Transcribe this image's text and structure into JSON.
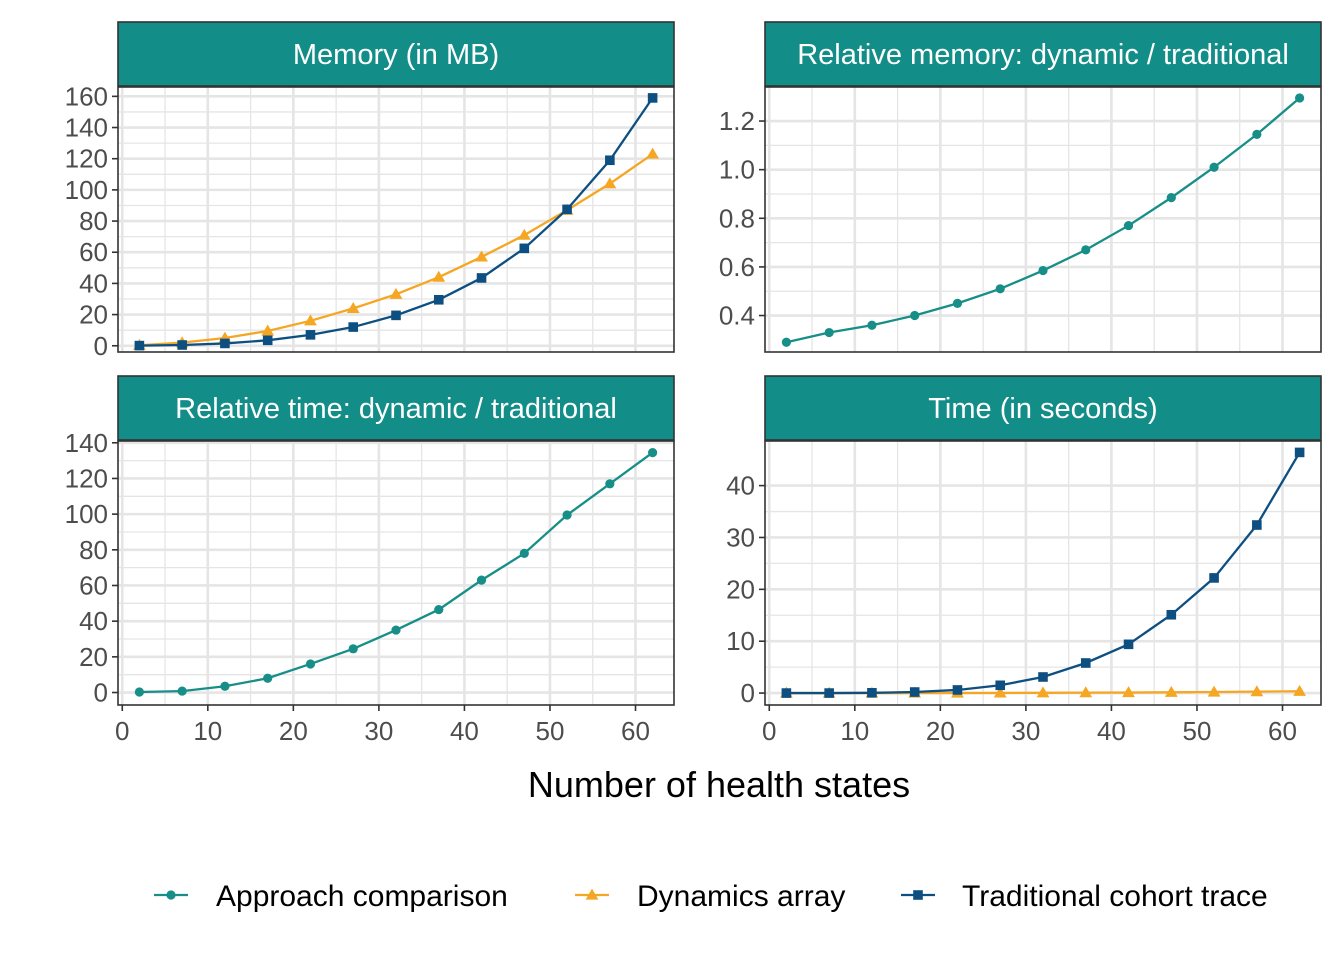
{
  "chart_data": {
    "type": "line",
    "xlabel": "Number of health states",
    "colors": {
      "strip_fill": "#138D88",
      "approach": "#178E88",
      "dynamics": "#F5A623",
      "traditional": "#0E4F82",
      "grid": "#E5E5E5",
      "border": "#333333"
    },
    "legend": {
      "position": "bottom",
      "entries": [
        {
          "name": "Approach comparison",
          "color": "#178E88",
          "marker": "circle"
        },
        {
          "name": "Dynamics array",
          "color": "#F5A623",
          "marker": "triangle"
        },
        {
          "name": "Traditional cohort trace",
          "color": "#0E4F82",
          "marker": "square"
        }
      ]
    },
    "x": [
      2,
      7,
      12,
      17,
      22,
      27,
      32,
      37,
      42,
      47,
      52,
      57,
      62
    ],
    "x_ticks": [
      0,
      10,
      20,
      30,
      40,
      50,
      60
    ],
    "panels": [
      {
        "title": "Memory (in MB)",
        "xlim": [
          -0.5,
          64.5
        ],
        "ylim": [
          -4,
          166
        ],
        "y_ticks": [
          0,
          20,
          40,
          60,
          80,
          100,
          120,
          140,
          160
        ],
        "series": [
          {
            "name": "Dynamics array",
            "values": [
              0.3,
              2,
              5,
              9.5,
              16,
              24,
              33,
              44,
              57,
              71,
              87,
              104,
              123
            ]
          },
          {
            "name": "Traditional cohort trace",
            "values": [
              0.1,
              0.5,
              1.5,
              3.5,
              7,
              12,
              19.5,
              29.5,
              43.5,
              62.5,
              87.5,
              119,
              159
            ]
          }
        ]
      },
      {
        "title": "Relative memory: dynamic / traditional",
        "xlim": [
          -0.5,
          64.5
        ],
        "ylim": [
          0.25,
          1.34
        ],
        "y_ticks": [
          0.4,
          0.6,
          0.8,
          1.0,
          1.2
        ],
        "y_tick_labels": [
          "0.4",
          "0.6",
          "0.8",
          "1.0",
          "1.2"
        ],
        "series": [
          {
            "name": "Approach comparison",
            "values": [
              0.29,
              0.33,
              0.36,
              0.4,
              0.45,
              0.51,
              0.585,
              0.67,
              0.77,
              0.885,
              1.01,
              1.145,
              1.295
            ]
          }
        ]
      },
      {
        "title": "Relative time: dynamic / traditional",
        "xlim": [
          -0.5,
          64.5
        ],
        "ylim": [
          -7,
          141
        ],
        "y_ticks": [
          0,
          20,
          40,
          60,
          80,
          100,
          120,
          140
        ],
        "series": [
          {
            "name": "Approach comparison",
            "values": [
              0.3,
              0.8,
              3.5,
              8,
              16,
              24.5,
              35,
              46.5,
              63,
              78,
              99.5,
              117,
              134.5
            ]
          }
        ]
      },
      {
        "title": "Time (in seconds)",
        "xlim": [
          -0.5,
          64.5
        ],
        "ylim": [
          -2.3,
          48.6
        ],
        "y_ticks": [
          0,
          10,
          20,
          30,
          40
        ],
        "series": [
          {
            "name": "Dynamics array",
            "values": [
              0,
              0,
              0,
              0,
              0.02,
              0.03,
              0.05,
              0.08,
              0.1,
              0.15,
              0.2,
              0.28,
              0.35
            ]
          },
          {
            "name": "Traditional cohort trace",
            "values": [
              0,
              0,
              0.05,
              0.2,
              0.6,
              1.5,
              3.1,
              5.8,
              9.4,
              15.1,
              22.2,
              32.4,
              46.4
            ]
          }
        ]
      }
    ]
  }
}
